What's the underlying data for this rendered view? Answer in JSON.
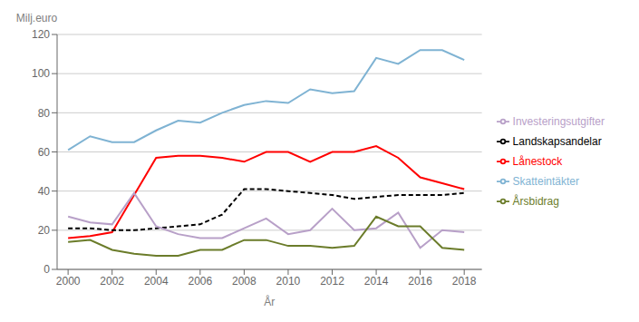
{
  "chart_data": {
    "type": "line",
    "xlabel": "År",
    "ylabel": "Milj.euro",
    "x": [
      2000,
      2001,
      2002,
      2003,
      2004,
      2005,
      2006,
      2007,
      2008,
      2009,
      2010,
      2011,
      2012,
      2013,
      2014,
      2015,
      2016,
      2017,
      2018
    ],
    "series": [
      {
        "name": "Skatteintäkter",
        "color": "#7fb3d3",
        "line_style": "solid",
        "values": [
          61,
          68,
          65,
          65,
          71,
          76,
          75,
          80,
          84,
          86,
          85,
          92,
          90,
          91,
          108,
          105,
          112,
          112,
          107
        ]
      },
      {
        "name": "Lånestock",
        "color": "#ff0000",
        "line_style": "solid",
        "values": [
          16,
          17,
          19,
          38,
          57,
          58,
          58,
          57,
          55,
          60,
          60,
          55,
          60,
          60,
          63,
          57,
          47,
          44,
          41
        ]
      },
      {
        "name": "Landskapsandelar",
        "color": "#000000",
        "line_style": "dashed",
        "values": [
          21,
          21,
          20,
          20,
          21,
          22,
          23,
          28,
          41,
          41,
          40,
          39,
          38,
          36,
          37,
          38,
          38,
          38,
          39
        ]
      },
      {
        "name": "Investeringsutgifter",
        "color": "#b8a0c8",
        "line_style": "solid",
        "values": [
          27,
          24,
          23,
          39,
          22,
          18,
          16,
          16,
          21,
          26,
          18,
          20,
          31,
          20,
          21,
          29,
          11,
          20,
          19
        ]
      },
      {
        "name": "Årsbidrag",
        "color": "#6b7c2a",
        "line_style": "solid",
        "values": [
          14,
          15,
          10,
          8,
          7,
          7,
          10,
          10,
          15,
          15,
          12,
          12,
          11,
          12,
          27,
          22,
          22,
          11,
          10
        ]
      }
    ],
    "xlim": [
      1999.5,
      2018.8
    ],
    "xticks": [
      2000,
      2002,
      2004,
      2006,
      2008,
      2010,
      2012,
      2014,
      2016,
      2018
    ],
    "ylim": [
      0,
      120
    ],
    "yticks": [
      0,
      20,
      40,
      60,
      80,
      100,
      120
    ],
    "grid": true,
    "legend": "right"
  }
}
